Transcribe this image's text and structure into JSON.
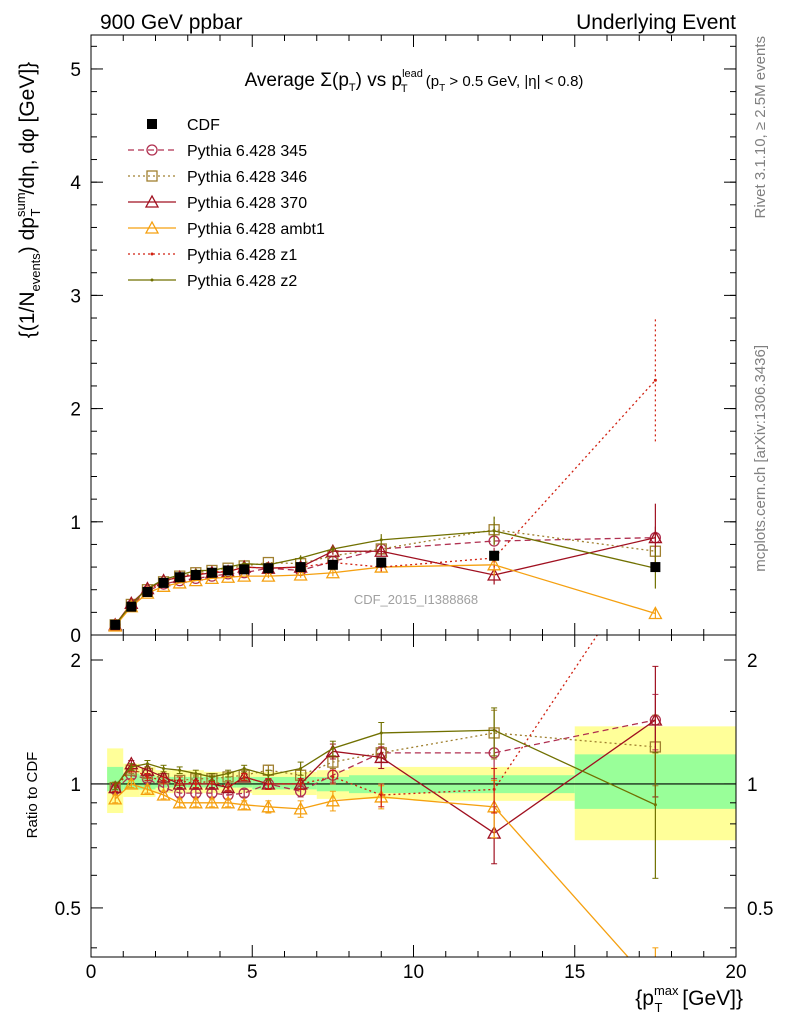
{
  "header": {
    "left": "900 GeV ppbar",
    "right": "Underlying Event"
  },
  "plot_title": {
    "prefix": "Average ",
    "sigma": "Σ(p",
    "sigma_sub": "T",
    "mid": ") vs p",
    "lead_sup": "lead",
    "lead_sub": "T",
    "cut_open": " (p",
    "cut_sub": "T",
    "cut_rest": " > 0.5 GeV, |η| < 0.8)"
  },
  "side_labels": {
    "rivet": "Rivet 3.1.10, ≥ 2.5M events",
    "mcplots": "mcplots.cern.ch [arXiv:1306.3436]"
  },
  "watermark": "CDF_2015_I1388868",
  "axes": {
    "ylabel_main": {
      "a": "{(1/N",
      "a_sub": "events",
      "b": ") dp",
      "b_sup": "sum",
      "b_sub": "T",
      "c": "/dη, dφ [GeV]}"
    },
    "ylabel_ratio": "Ratio to CDF",
    "xlabel": {
      "a": "{p",
      "sup": "max",
      "sub": "T",
      "b": " [GeV]}"
    },
    "x_ticks": [
      "0",
      "5",
      "10",
      "15",
      "20"
    ],
    "y_ticks_main": [
      "0",
      "1",
      "2",
      "3",
      "4",
      "5"
    ],
    "y_ticks_ratio": [
      "0.5",
      "1",
      "2"
    ]
  },
  "colors": {
    "cdf": "#000000",
    "p345": "#b03050",
    "p346": "#a08030",
    "p370": "#a01020",
    "ambt1": "#f5a010",
    "z1": "#d02010",
    "z2": "#707000",
    "band_outer": "#ffff99",
    "band_inner": "#99ff99"
  },
  "chart_data": {
    "type": "line",
    "xlim": [
      0,
      20
    ],
    "ylim_main": [
      0,
      5.3
    ],
    "ylim_ratio": [
      0.38,
      2.3
    ],
    "ratio_log_scale": true,
    "legend_position": "top-left",
    "legend": [
      "CDF",
      "Pythia 6.428 345",
      "Pythia 6.428 346",
      "Pythia 6.428 370",
      "Pythia 6.428 ambt1",
      "Pythia 6.428 z1",
      "Pythia 6.428 z2"
    ],
    "data": {
      "name": "CDF",
      "x": [
        0.75,
        1.25,
        1.75,
        2.25,
        2.75,
        3.25,
        3.75,
        4.25,
        4.75,
        5.5,
        6.5,
        7.5,
        9.0,
        12.5,
        17.5
      ],
      "y": [
        0.09,
        0.25,
        0.38,
        0.46,
        0.51,
        0.53,
        0.55,
        0.57,
        0.58,
        0.59,
        0.6,
        0.62,
        0.64,
        0.7,
        0.6
      ],
      "band_edges": [
        0.5,
        1.0,
        1.5,
        2.0,
        2.5,
        3.0,
        3.5,
        4.0,
        4.5,
        5.0,
        6.0,
        7.0,
        8.0,
        10.0,
        15.0,
        20.0
      ],
      "band_inner_lo": [
        0.96,
        0.97,
        0.97,
        0.98,
        0.98,
        0.98,
        0.98,
        0.98,
        0.98,
        0.97,
        0.97,
        0.96,
        0.95,
        0.95,
        0.87
      ],
      "band_inner_hi": [
        1.1,
        1.06,
        1.05,
        1.04,
        1.04,
        1.04,
        1.04,
        1.04,
        1.04,
        1.04,
        1.04,
        1.04,
        1.05,
        1.05,
        1.18
      ],
      "band_outer_lo": [
        0.85,
        0.93,
        0.93,
        0.95,
        0.95,
        0.95,
        0.95,
        0.95,
        0.95,
        0.94,
        0.94,
        0.92,
        0.92,
        0.91,
        0.73
      ],
      "band_outer_hi": [
        1.22,
        1.12,
        1.1,
        1.08,
        1.08,
        1.08,
        1.07,
        1.07,
        1.07,
        1.07,
        1.07,
        1.08,
        1.1,
        1.1,
        1.38
      ]
    },
    "series": [
      {
        "name": "Pythia 6.428 345",
        "style": "dashed",
        "marker": "circle",
        "y": [
          0.09,
          0.26,
          0.39,
          0.45,
          0.48,
          0.5,
          0.52,
          0.54,
          0.55,
          0.59,
          0.57,
          0.65,
          0.76,
          0.83,
          0.86
        ],
        "ratio": [
          0.97,
          1.05,
          1.03,
          0.98,
          0.95,
          0.95,
          0.95,
          0.94,
          0.95,
          1.0,
          0.96,
          1.05,
          1.19,
          1.19,
          1.43
        ],
        "ratio_err": [
          0.02,
          0.02,
          0.02,
          0.02,
          0.02,
          0.02,
          0.02,
          0.02,
          0.02,
          0.03,
          0.03,
          0.04,
          0.06,
          0.16,
          0.22
        ]
      },
      {
        "name": "Pythia 6.428 346",
        "style": "dotted",
        "marker": "square",
        "y": [
          0.09,
          0.27,
          0.4,
          0.47,
          0.52,
          0.55,
          0.57,
          0.59,
          0.61,
          0.64,
          0.63,
          0.7,
          0.76,
          0.93,
          0.74
        ],
        "ratio": [
          0.98,
          1.08,
          1.06,
          1.03,
          1.02,
          1.03,
          1.03,
          1.04,
          1.05,
          1.08,
          1.05,
          1.13,
          1.19,
          1.33,
          1.23
        ],
        "ratio_err": [
          0.02,
          0.02,
          0.02,
          0.02,
          0.02,
          0.02,
          0.02,
          0.02,
          0.02,
          0.03,
          0.03,
          0.04,
          0.06,
          0.18,
          0.24
        ]
      },
      {
        "name": "Pythia 6.428 370",
        "style": "solid",
        "marker": "triangle",
        "y": [
          0.09,
          0.28,
          0.41,
          0.48,
          0.51,
          0.53,
          0.55,
          0.56,
          0.6,
          0.59,
          0.6,
          0.74,
          0.74,
          0.53,
          0.86
        ],
        "ratio": [
          0.98,
          1.12,
          1.08,
          1.04,
          1.0,
          1.0,
          1.0,
          0.98,
          1.04,
          1.0,
          1.0,
          1.2,
          1.16,
          0.76,
          1.43
        ],
        "ratio_err": [
          0.02,
          0.02,
          0.02,
          0.02,
          0.02,
          0.02,
          0.02,
          0.02,
          0.02,
          0.03,
          0.03,
          0.05,
          0.07,
          0.12,
          0.5
        ]
      },
      {
        "name": "Pythia 6.428 ambt1",
        "style": "solid",
        "marker": "triangle",
        "y": [
          0.08,
          0.25,
          0.37,
          0.43,
          0.46,
          0.48,
          0.5,
          0.51,
          0.52,
          0.52,
          0.53,
          0.55,
          0.6,
          0.62,
          0.19
        ],
        "ratio": [
          0.92,
          1.0,
          0.97,
          0.94,
          0.9,
          0.9,
          0.9,
          0.9,
          0.89,
          0.88,
          0.87,
          0.91,
          0.93,
          0.88,
          0.32
        ],
        "ratio_err": [
          0.02,
          0.02,
          0.02,
          0.02,
          0.02,
          0.02,
          0.02,
          0.02,
          0.02,
          0.03,
          0.04,
          0.05,
          0.06,
          0.14,
          0.08
        ]
      },
      {
        "name": "Pythia 6.428 z1",
        "style": "dotted",
        "marker": "dot",
        "y": [
          0.09,
          0.27,
          0.4,
          0.47,
          0.52,
          0.53,
          0.56,
          0.56,
          0.6,
          0.59,
          0.6,
          0.64,
          0.6,
          0.68,
          2.25
        ],
        "ratio": [
          0.98,
          1.09,
          1.04,
          1.02,
          1.02,
          1.0,
          1.02,
          0.98,
          1.04,
          1.0,
          1.0,
          1.04,
          0.94,
          0.97,
          3.74
        ],
        "ratio_err": [
          0.02,
          0.02,
          0.02,
          0.02,
          0.02,
          0.02,
          0.02,
          0.02,
          0.02,
          0.03,
          0.03,
          0.04,
          0.06,
          0.12,
          0.9
        ]
      },
      {
        "name": "Pythia 6.428 z2",
        "style": "solid",
        "marker": "dot",
        "y": [
          0.09,
          0.27,
          0.41,
          0.49,
          0.53,
          0.57,
          0.57,
          0.6,
          0.63,
          0.62,
          0.68,
          0.76,
          0.84,
          0.92,
          0.59
        ],
        "ratio": [
          0.99,
          1.1,
          1.12,
          1.09,
          1.08,
          1.06,
          1.04,
          1.06,
          1.09,
          1.05,
          1.09,
          1.22,
          1.33,
          1.35,
          0.89
        ],
        "ratio_err": [
          0.02,
          0.02,
          0.02,
          0.02,
          0.02,
          0.02,
          0.02,
          0.02,
          0.02,
          0.03,
          0.04,
          0.05,
          0.08,
          0.18,
          0.3
        ]
      }
    ]
  }
}
